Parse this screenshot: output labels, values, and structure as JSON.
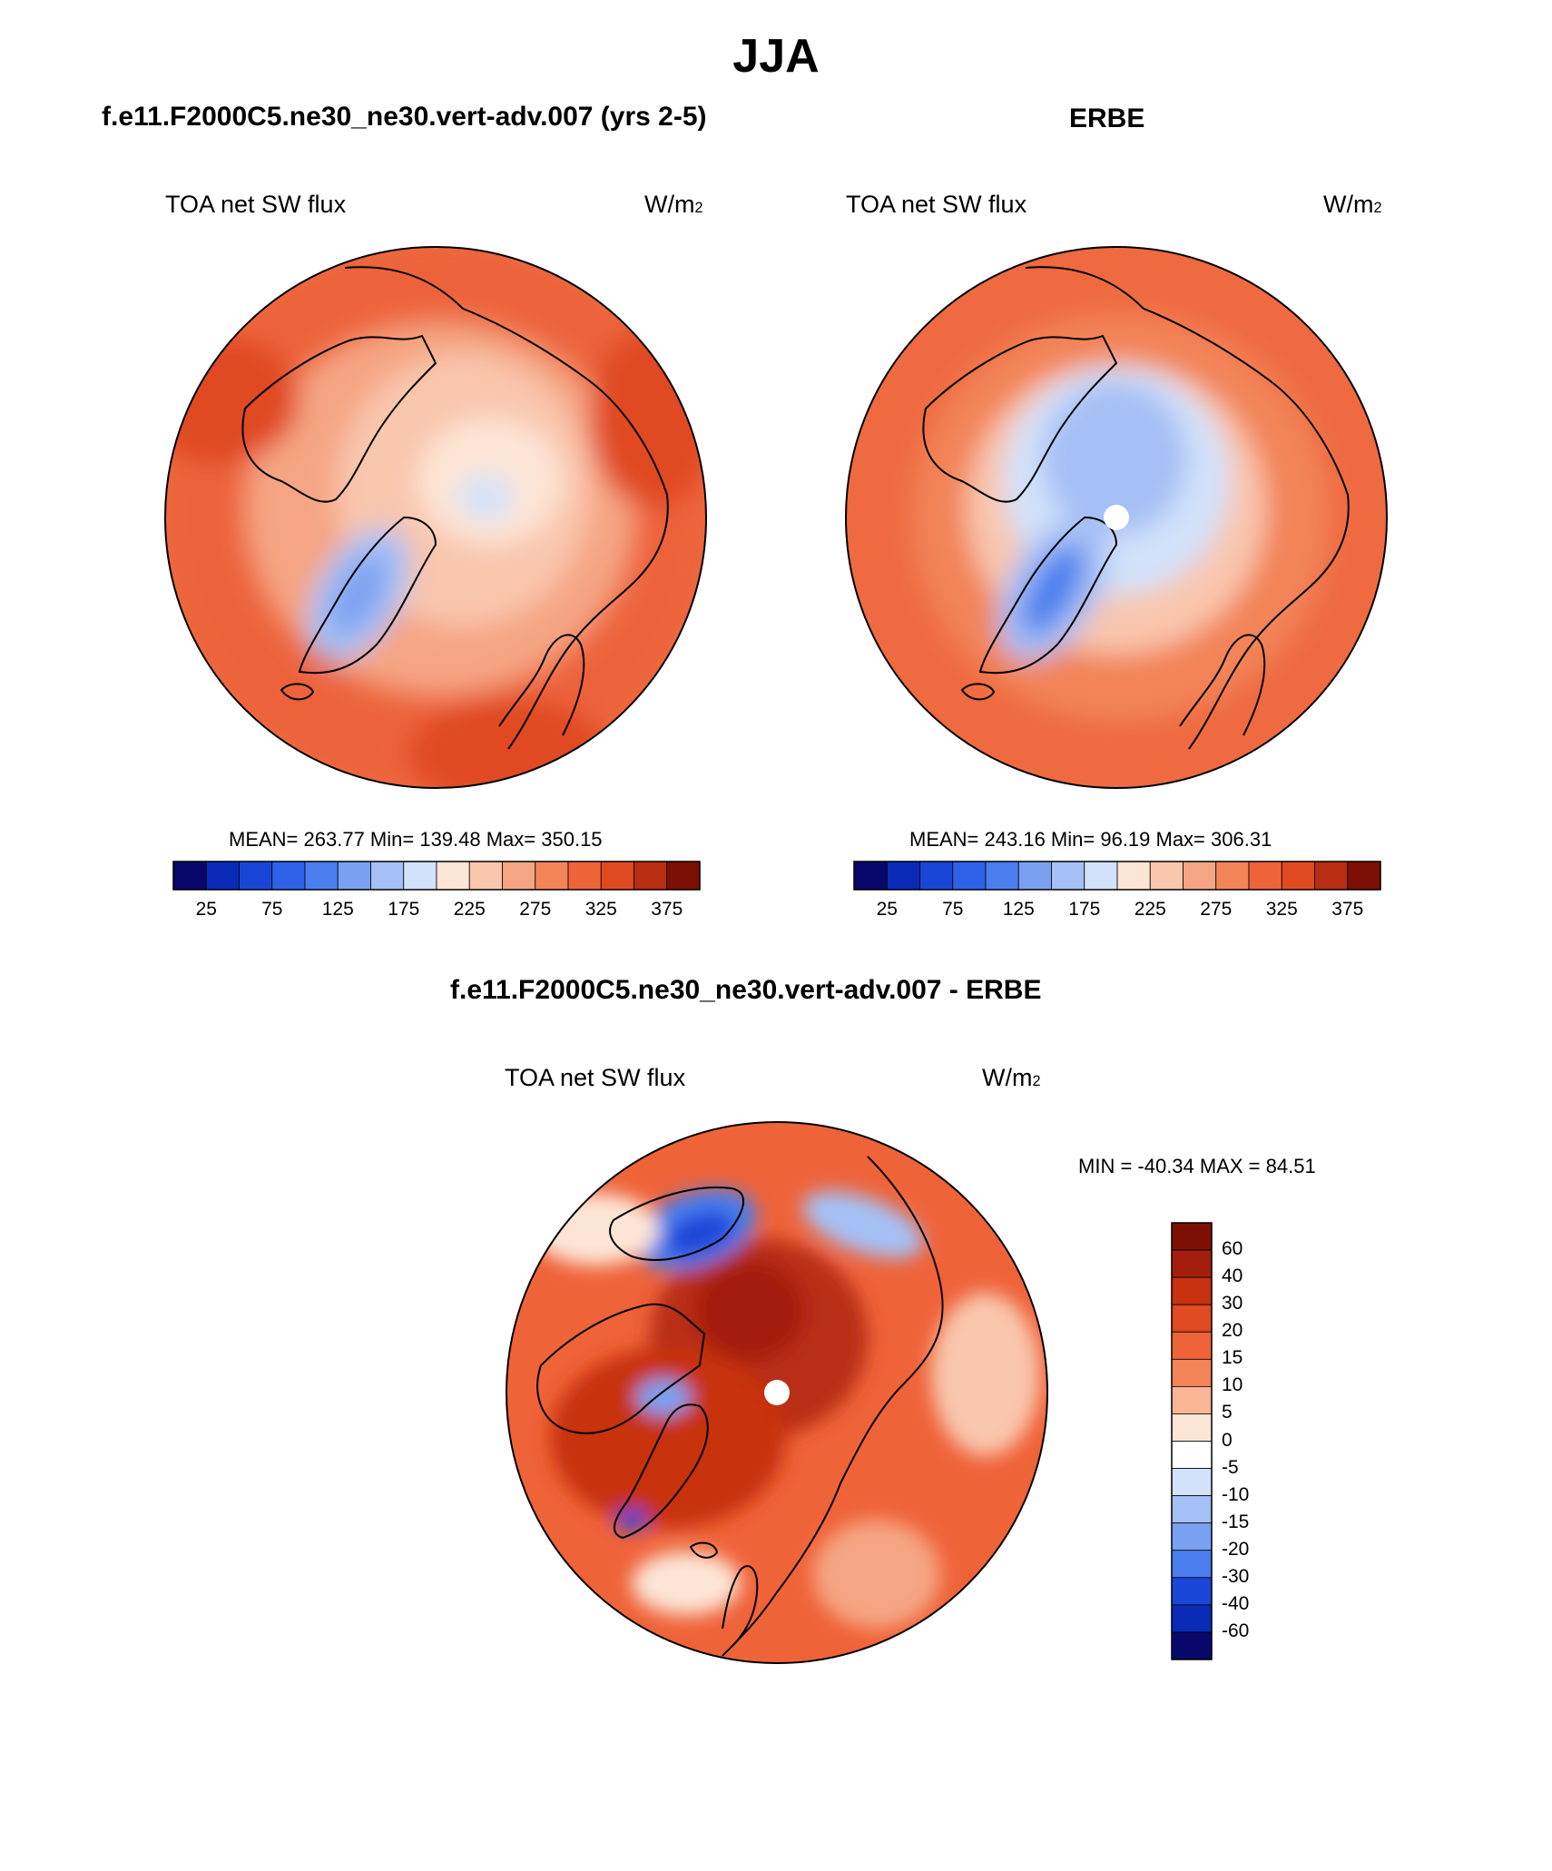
{
  "figure": {
    "title": "JJA",
    "variable": "TOA net SW flux",
    "units_base": "W/m",
    "units_exp": "2"
  },
  "panels": {
    "model": {
      "title": "f.e11.F2000C5.ne30_ne30.vert-adv.007 (yrs 2-5)",
      "stats": "MEAN= 263.77  Min= 139.48  Max= 350.15"
    },
    "obs": {
      "title": "ERBE",
      "stats": "MEAN= 243.16  Min=  96.19  Max= 306.31"
    },
    "diff": {
      "title": "f.e11.F2000C5.ne30_ne30.vert-adv.007 - ERBE",
      "stats": "MIN = -40.34 MAX =  84.51"
    }
  },
  "chart_data": [
    {
      "type": "heatmap",
      "projection": "north polar stereographic",
      "title": "f.e11.F2000C5.ne30_ne30.vert-adv.007 (yrs 2-5)",
      "variable": "TOA net SW flux",
      "units": "W/m2",
      "mean": 263.77,
      "min": 139.48,
      "max": 350.15,
      "colorbar_ticks": [
        "25",
        "75",
        "125",
        "175",
        "225",
        "275",
        "325",
        "375"
      ],
      "colorbar_colors": [
        "#08086b",
        "#0a2bb8",
        "#1a46d8",
        "#2f62e8",
        "#4a7eee",
        "#7aa0f2",
        "#a5c0f5",
        "#d2e2fa",
        "#fde5d6",
        "#f9c6ae",
        "#f5a583",
        "#f28458",
        "#ef6339",
        "#e04a20",
        "#b82e12",
        "#7d0f05"
      ]
    },
    {
      "type": "heatmap",
      "projection": "north polar stereographic",
      "title": "ERBE",
      "variable": "TOA net SW flux",
      "units": "W/m2",
      "mean": 243.16,
      "min": 96.19,
      "max": 306.31,
      "colorbar_ticks": [
        "25",
        "75",
        "125",
        "175",
        "225",
        "275",
        "325",
        "375"
      ],
      "colorbar_colors": [
        "#08086b",
        "#0a2bb8",
        "#1a46d8",
        "#2f62e8",
        "#4a7eee",
        "#7aa0f2",
        "#a5c0f5",
        "#d2e2fa",
        "#fde5d6",
        "#f9c6ae",
        "#f5a583",
        "#f28458",
        "#ef6339",
        "#e04a20",
        "#b82e12",
        "#7d0f05"
      ]
    },
    {
      "type": "heatmap",
      "projection": "north polar stereographic",
      "title": "f.e11.F2000C5.ne30_ne30.vert-adv.007 - ERBE",
      "variable": "TOA net SW flux",
      "units": "W/m2",
      "min": -40.34,
      "max": 84.51,
      "colorbar_ticks": [
        "60",
        "40",
        "30",
        "20",
        "15",
        "10",
        "5",
        "0",
        "-5",
        "-10",
        "-15",
        "-20",
        "-30",
        "-40",
        "-60"
      ],
      "colorbar_colors": [
        "#7d0f05",
        "#a41f0b",
        "#c8320f",
        "#e04a20",
        "#ef6339",
        "#f28458",
        "#f9b596",
        "#fde5d6",
        "#ffffff",
        "#d2e2fa",
        "#a5c0f5",
        "#7aa0f2",
        "#4a7eee",
        "#1a46d8",
        "#0a2bb8",
        "#08086b"
      ]
    }
  ]
}
